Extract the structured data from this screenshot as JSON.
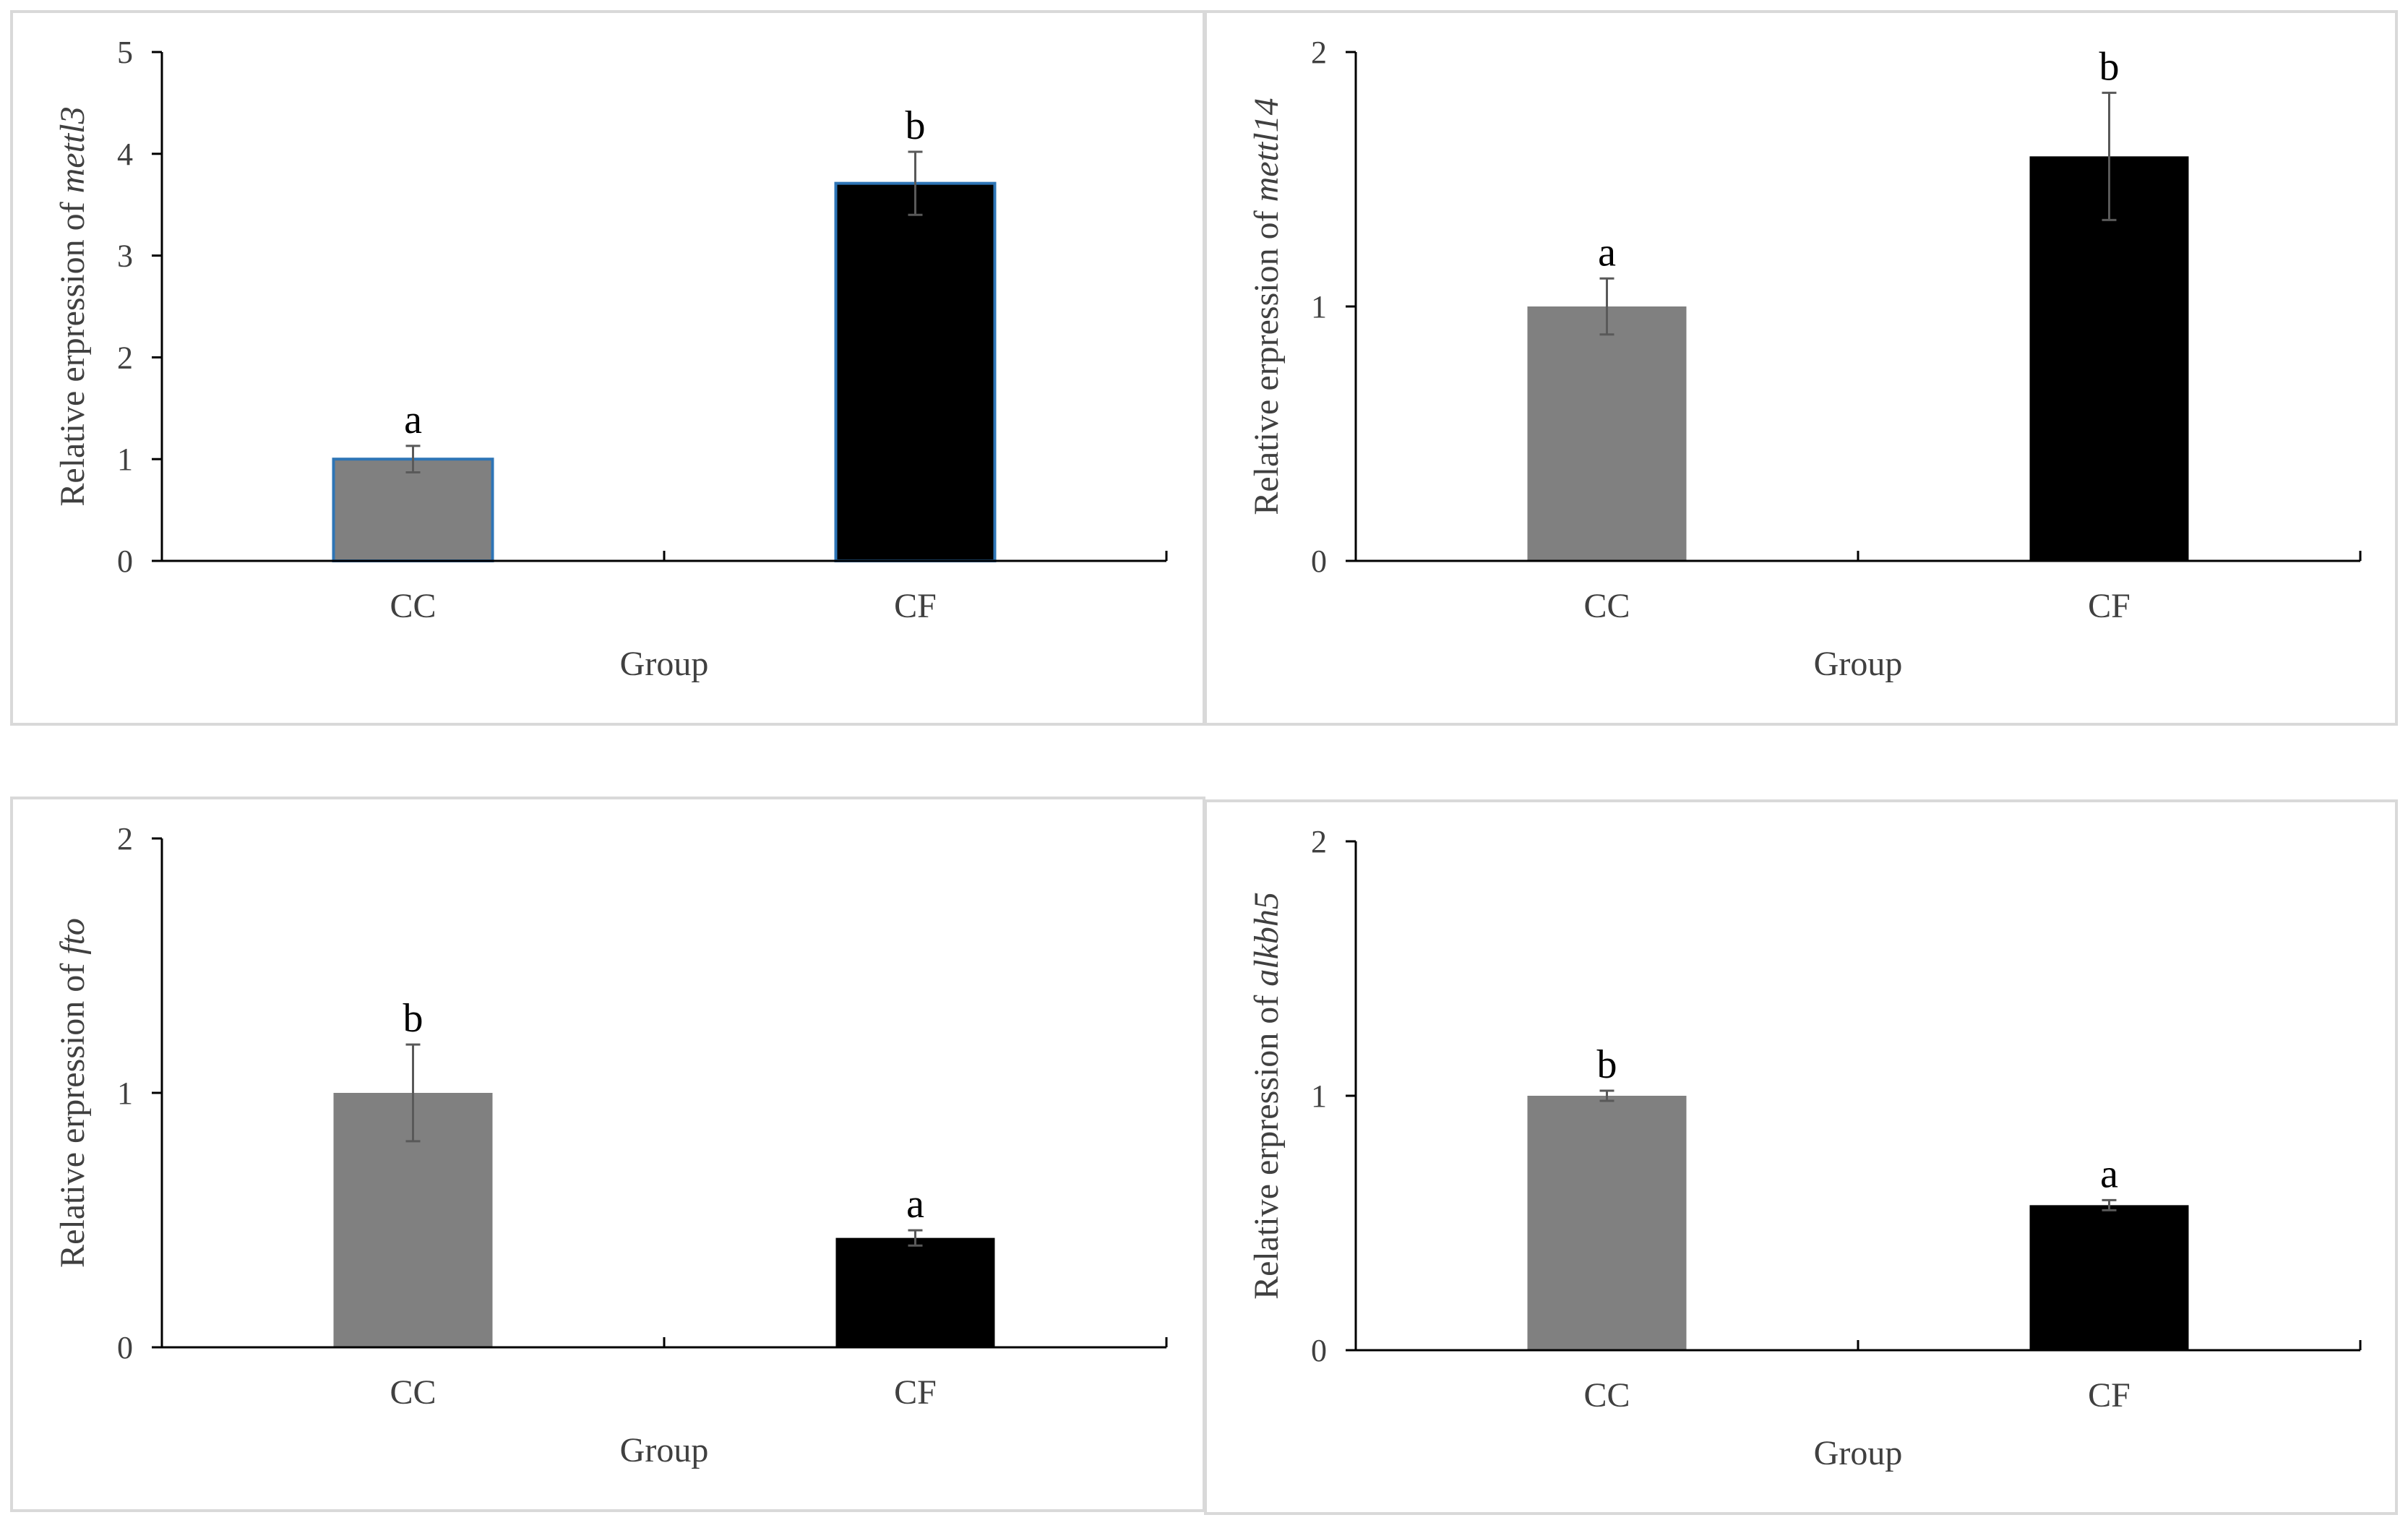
{
  "chart_data": [
    {
      "type": "bar",
      "ylabel_prefix": "Relative erpression of ",
      "gene": "mettl3",
      "xlabel": "Group",
      "categories": [
        "CC",
        "CF"
      ],
      "values": [
        1.0,
        3.71
      ],
      "errors": [
        0.13,
        0.31
      ],
      "significance": [
        "a",
        "b"
      ],
      "ylim": [
        0,
        5
      ],
      "yticks": [
        "0",
        "1",
        "2",
        "3",
        "4",
        "5"
      ],
      "bar_colors": [
        "#808080",
        "#000000"
      ],
      "bar_outline": "#2e75b6"
    },
    {
      "type": "bar",
      "ylabel_prefix": "Relative erpression of ",
      "gene": "mettl14",
      "xlabel": "Group",
      "categories": [
        "CC",
        "CF"
      ],
      "values": [
        1.0,
        1.59
      ],
      "errors": [
        0.11,
        0.25
      ],
      "significance": [
        "a",
        "b"
      ],
      "ylim": [
        0,
        2
      ],
      "yticks": [
        "0",
        "1",
        "2"
      ],
      "bar_colors": [
        "#808080",
        "#000000"
      ],
      "bar_outline": ""
    },
    {
      "type": "bar",
      "ylabel_prefix": "Relative erpression of ",
      "gene": "fto",
      "xlabel": "Group",
      "categories": [
        "CC",
        "CF"
      ],
      "values": [
        1.0,
        0.43
      ],
      "errors": [
        0.19,
        0.03
      ],
      "significance": [
        "b",
        "a"
      ],
      "ylim": [
        0,
        2
      ],
      "yticks": [
        "0",
        "1",
        "2"
      ],
      "bar_colors": [
        "#808080",
        "#000000"
      ],
      "bar_outline": ""
    },
    {
      "type": "bar",
      "ylabel_prefix": "Relative erpression of ",
      "gene": "alkbh5",
      "xlabel": "Group",
      "categories": [
        "CC",
        "CF"
      ],
      "values": [
        1.0,
        0.57
      ],
      "errors": [
        0.02,
        0.02
      ],
      "significance": [
        "b",
        "a"
      ],
      "ylim": [
        0,
        2
      ],
      "yticks": [
        "0",
        "1",
        "2"
      ],
      "bar_colors": [
        "#808080",
        "#000000"
      ],
      "bar_outline": ""
    }
  ]
}
